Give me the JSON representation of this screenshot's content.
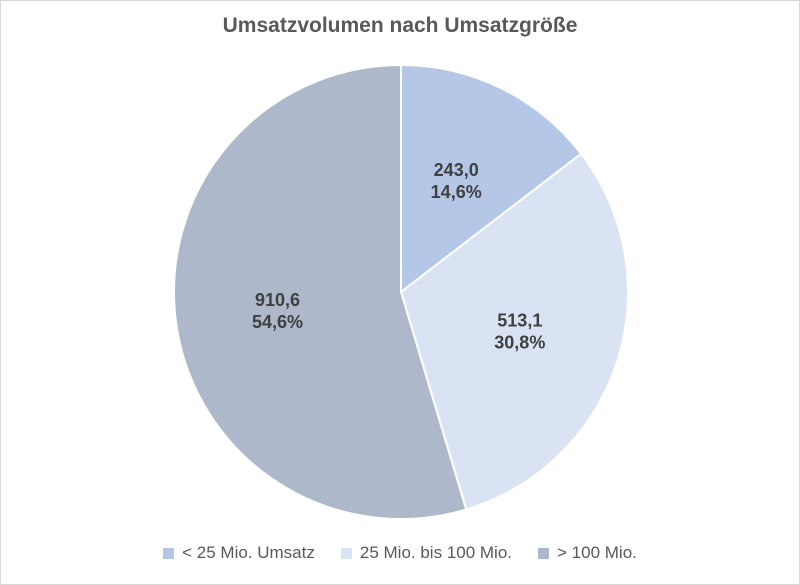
{
  "chart_data": {
    "type": "pie",
    "title": "Umsatzvolumen nach Umsatzgröße",
    "legend_position": "bottom",
    "slices": [
      {
        "label": "< 25 Mio. Umsatz",
        "value": 243.0,
        "value_text": "243,0",
        "percent_text": "14,6%",
        "color": "#b4c7e7"
      },
      {
        "label": "25 Mio. bis 100 Mio.",
        "value": 513.1,
        "value_text": "513,1",
        "percent_text": "30,8%",
        "color": "#dae3f3"
      },
      {
        "label": "> 100 Mio.",
        "value": 910.6,
        "value_text": "910,6",
        "percent_text": "54,6%",
        "color": "#adb9ca"
      }
    ]
  }
}
